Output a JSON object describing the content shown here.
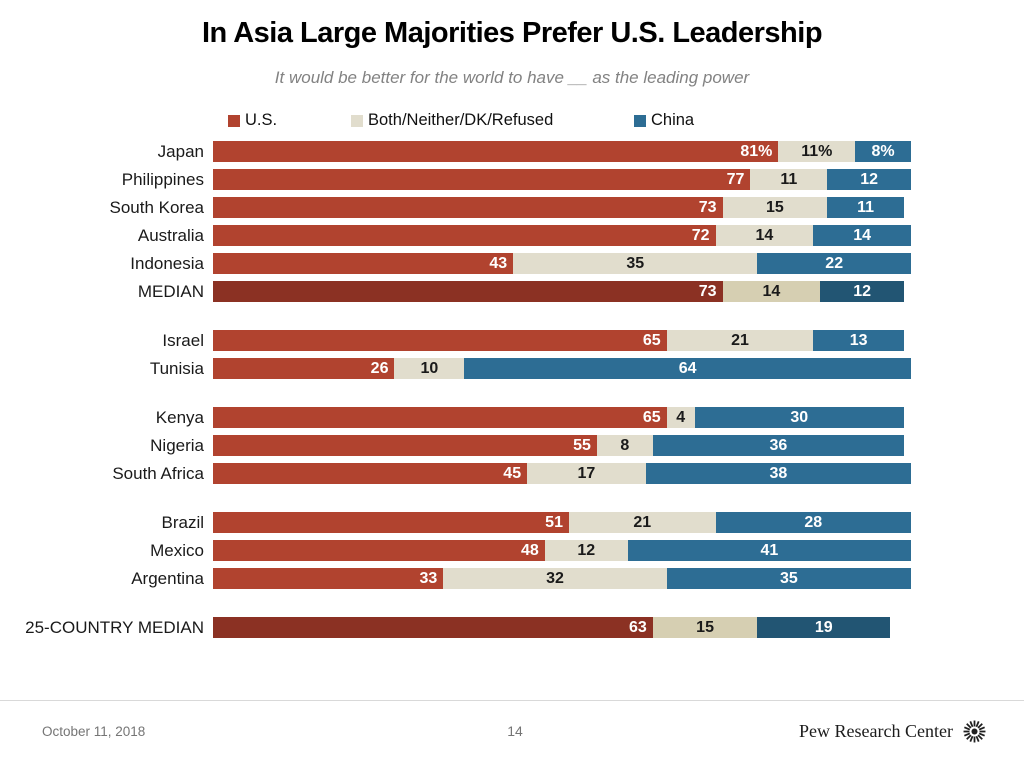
{
  "title": "In Asia Large Majorities Prefer U.S. Leadership",
  "subtitle": "It would be better for the world to have __ as the leading power",
  "legend": [
    {
      "label": "U.S.",
      "color": "#b1432f"
    },
    {
      "label": "Both/Neither/DK/Refused",
      "color": "#e1ddcd"
    },
    {
      "label": "China",
      "color": "#2d6d94"
    }
  ],
  "colors": {
    "us": "#b1432f",
    "both": "#e1ddcd",
    "china": "#2d6d94",
    "us_median": "#8b3123",
    "both_median": "#d6cfb2",
    "china_median": "#225573",
    "label_on_dark": "#ffffff",
    "label_on_light": "#1a1a1a"
  },
  "chart_data": {
    "type": "bar",
    "orientation": "horizontal",
    "stacked": true,
    "unit": "%",
    "xlim": [
      0,
      100
    ],
    "series_names": [
      "U.S.",
      "Both/Neither/DK/Refused",
      "China"
    ],
    "title": "In Asia Large Majorities Prefer U.S. Leadership",
    "subtitle": "It would be better for the world to have __ as the leading power",
    "groups": [
      {
        "name": "asia-pacific",
        "rows": [
          {
            "label": "Japan",
            "values": [
              81,
              11,
              8
            ],
            "suffix": "%",
            "median": false
          },
          {
            "label": "Philippines",
            "values": [
              77,
              11,
              12
            ],
            "suffix": "",
            "median": false
          },
          {
            "label": "South Korea",
            "values": [
              73,
              15,
              11
            ],
            "suffix": "",
            "median": false
          },
          {
            "label": "Australia",
            "values": [
              72,
              14,
              14
            ],
            "suffix": "",
            "median": false
          },
          {
            "label": "Indonesia",
            "values": [
              43,
              35,
              22
            ],
            "suffix": "",
            "median": false
          },
          {
            "label": "MEDIAN",
            "values": [
              73,
              14,
              12
            ],
            "suffix": "",
            "median": true
          }
        ]
      },
      {
        "name": "middle-east",
        "rows": [
          {
            "label": "Israel",
            "values": [
              65,
              21,
              13
            ],
            "suffix": "",
            "median": false
          },
          {
            "label": "Tunisia",
            "values": [
              26,
              10,
              64
            ],
            "suffix": "",
            "median": false
          }
        ]
      },
      {
        "name": "africa",
        "rows": [
          {
            "label": "Kenya",
            "values": [
              65,
              4,
              30
            ],
            "suffix": "",
            "median": false
          },
          {
            "label": "Nigeria",
            "values": [
              55,
              8,
              36
            ],
            "suffix": "",
            "median": false
          },
          {
            "label": "South Africa",
            "values": [
              45,
              17,
              38
            ],
            "suffix": "",
            "median": false
          }
        ]
      },
      {
        "name": "latin-america",
        "rows": [
          {
            "label": "Brazil",
            "values": [
              51,
              21,
              28
            ],
            "suffix": "",
            "median": false
          },
          {
            "label": "Mexico",
            "values": [
              48,
              12,
              41
            ],
            "suffix": "",
            "median": false
          },
          {
            "label": "Argentina",
            "values": [
              33,
              32,
              35
            ],
            "suffix": "",
            "median": false
          }
        ]
      },
      {
        "name": "overall",
        "rows": [
          {
            "label": "25-COUNTRY MEDIAN",
            "values": [
              63,
              15,
              19
            ],
            "suffix": "",
            "median": true
          }
        ]
      }
    ]
  },
  "footer": {
    "date": "October 11, 2018",
    "page": "14",
    "brand": "Pew Research Center",
    "logo": "pew-sunburst-icon"
  }
}
